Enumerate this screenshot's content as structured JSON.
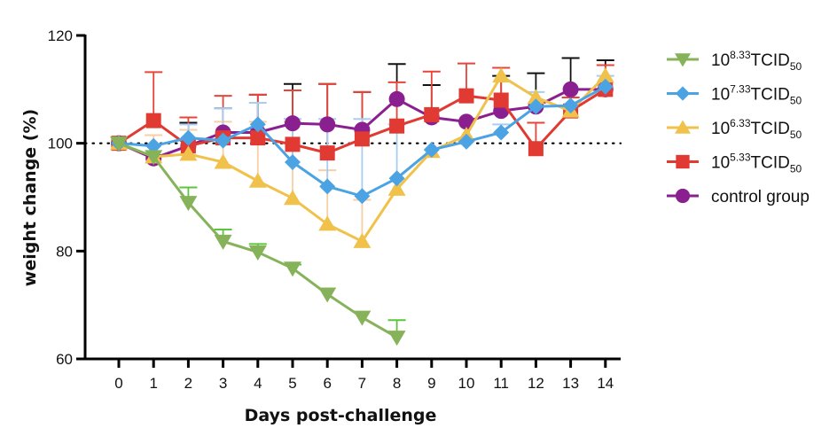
{
  "chart_data": {
    "type": "line",
    "title": "",
    "xlabel": "Days post-challenge",
    "ylabel": "weight change (%)",
    "x": [
      0,
      1,
      2,
      3,
      4,
      5,
      6,
      7,
      8,
      9,
      10,
      11,
      12,
      13,
      14
    ],
    "xticks": [
      "0",
      "1",
      "2",
      "3",
      "4",
      "5",
      "6",
      "7",
      "8",
      "9",
      "10",
      "11",
      "12",
      "13",
      "14"
    ],
    "yticks": [
      "60",
      "80",
      "100",
      "120"
    ],
    "ylim": [
      60,
      120
    ],
    "xlim": [
      -1,
      14.5
    ],
    "reference_line": {
      "y": 100,
      "style": "dotted"
    },
    "grid": false,
    "legend_position": "right",
    "series": [
      {
        "name": "10^8.33 TCID50",
        "label_base": "10",
        "label_exp": "8.33",
        "label_main": "TCID",
        "label_sub": "50",
        "color": "#86b35a",
        "err_color": "#5cc43e",
        "marker": "triangle-down",
        "values": [
          100,
          97.5,
          89,
          81.8,
          79.8,
          76.8,
          72,
          67.7,
          64,
          null,
          null,
          null,
          null,
          null,
          null
        ],
        "err_upper": [
          null,
          null,
          91.8,
          84,
          81.3,
          77.5,
          null,
          null,
          67.2,
          null,
          null,
          null,
          null,
          null,
          null
        ]
      },
      {
        "name": "10^7.33 TCID50",
        "label_base": "10",
        "label_exp": "7.33",
        "label_main": "TCID",
        "label_sub": "50",
        "color": "#4ba3e3",
        "err_color": "#a8cdf3",
        "marker": "diamond",
        "values": [
          100,
          99.5,
          101,
          100.5,
          103.5,
          96.5,
          92,
          90.2,
          93.5,
          98.8,
          100.3,
          102,
          106.8,
          107,
          110.5
        ],
        "err_upper": [
          null,
          null,
          103.5,
          106.5,
          107.5,
          104.5,
          104.5,
          104.5,
          103.5,
          null,
          null,
          103.5,
          109.5,
          null,
          112.5
        ]
      },
      {
        "name": "10^6.33 TCID50",
        "label_base": "10",
        "label_exp": "6.33",
        "label_main": "TCID",
        "label_sub": "50",
        "color": "#f0c14b",
        "err_color": "#f7cfa3",
        "marker": "triangle-up",
        "values": [
          100,
          97.5,
          98,
          96.5,
          93,
          89.8,
          85,
          81.8,
          91.5,
          98.5,
          101.5,
          112.5,
          108.5,
          106,
          112.5
        ],
        "err_upper": [
          null,
          101.5,
          102.5,
          104,
          104,
          104,
          95,
          89.5,
          null,
          null,
          null,
          null,
          null,
          null,
          null
        ]
      },
      {
        "name": "10^5.33 TCID50",
        "label_base": "10",
        "label_exp": "5.33",
        "label_main": "TCID",
        "label_sub": "50",
        "color": "#e03a32",
        "err_color": "#e8443a",
        "marker": "square",
        "values": [
          100,
          104.2,
          99.5,
          101,
          101,
          99.8,
          98.2,
          100.8,
          103.2,
          105.3,
          108.8,
          108,
          99,
          106,
          110
        ],
        "err_upper": [
          null,
          113.2,
          104.8,
          108.8,
          109,
          109.8,
          111,
          109.5,
          111.3,
          113.3,
          114.8,
          114,
          103.8,
          108.5,
          114.5
        ]
      },
      {
        "name": "control group",
        "label_base": "control group",
        "label_exp": "",
        "label_main": "",
        "label_sub": "",
        "color": "#8a2090",
        "err_color": "#111111",
        "marker": "circle",
        "values": [
          100,
          97.2,
          99.5,
          102,
          102,
          103.7,
          103.5,
          102.5,
          108.2,
          104.8,
          104,
          106,
          106.8,
          110,
          110
        ],
        "err_upper": [
          null,
          null,
          103.8,
          106.5,
          109,
          111,
          111,
          109.5,
          114.7,
          110.8,
          null,
          112.5,
          113,
          115.8,
          115.4
        ]
      }
    ]
  }
}
